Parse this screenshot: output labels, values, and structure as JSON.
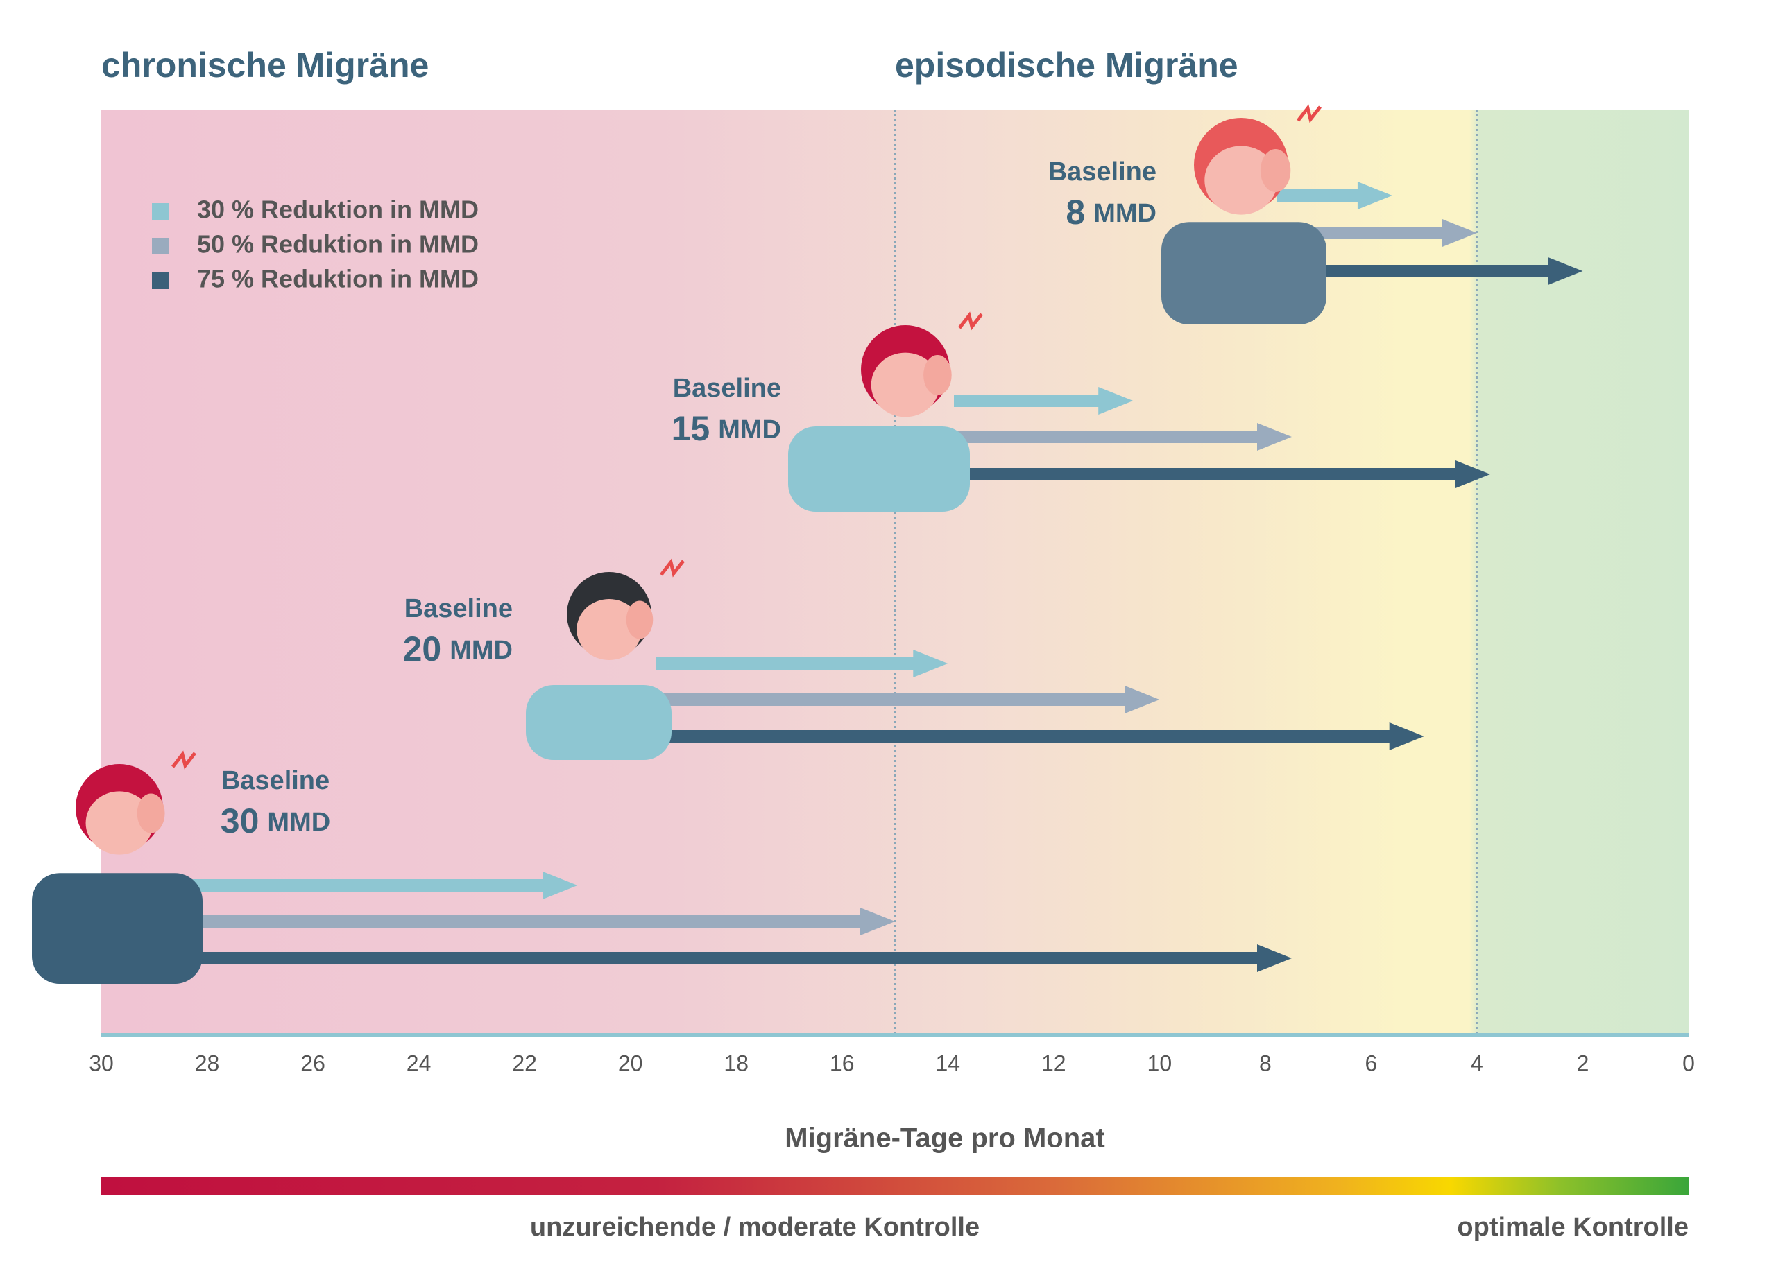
{
  "chart_data": {
    "type": "arrow",
    "region_labels": [
      "chronische Migräne",
      "episodische Migräne"
    ],
    "boundaries": [
      15,
      4
    ],
    "groups": [
      {
        "label": "Baseline",
        "value": 30,
        "unit": "MMD"
      },
      {
        "label": "Baseline",
        "value": 20,
        "unit": "MMD"
      },
      {
        "label": "Baseline",
        "value": 15,
        "unit": "MMD"
      },
      {
        "label": "Baseline",
        "value": 8,
        "unit": "MMD"
      }
    ],
    "series": [
      {
        "name": "30 % Reduktion in MMD",
        "color": "#8ec6d2",
        "values": [
          21,
          14,
          10.5,
          5.6
        ]
      },
      {
        "name": "50 % Reduktion in MMD",
        "color": "#9aabbe",
        "values": [
          15,
          10,
          7.5,
          4
        ]
      },
      {
        "name": "75 % Reduktion in MMD",
        "color": "#3b6079",
        "values": [
          7.5,
          5,
          3.75,
          2
        ]
      }
    ],
    "xlim": [
      30,
      0
    ],
    "xticks": [
      30,
      28,
      26,
      24,
      22,
      20,
      18,
      16,
      14,
      12,
      10,
      8,
      6,
      4,
      2,
      0
    ],
    "xlabel": "Migräne-Tage pro Monat",
    "scale_labels": [
      "unzureichende / moderate Kontrolle",
      "optimale Kontrolle"
    ]
  }
}
